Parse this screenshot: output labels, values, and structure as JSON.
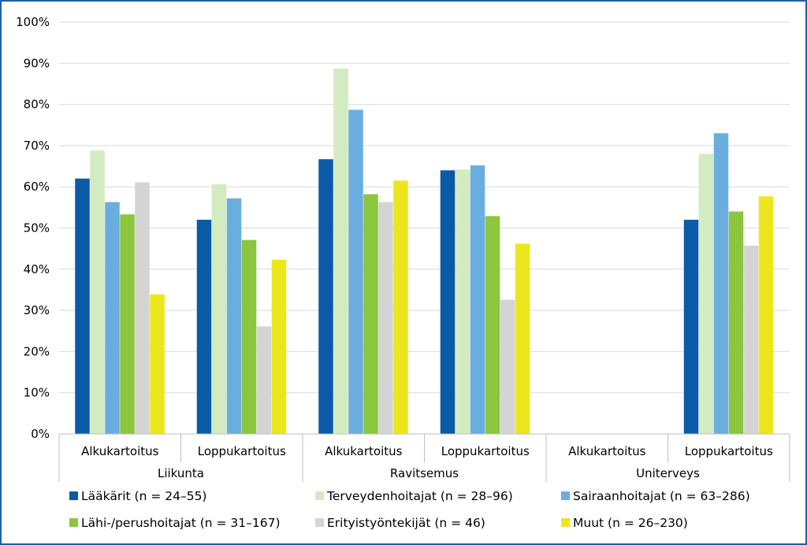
{
  "chart_data": {
    "type": "bar",
    "groups": [
      {
        "label": "Liikunta",
        "categories": [
          "Alkukartoitus",
          "Loppukartoitus"
        ]
      },
      {
        "label": "Ravitsemus",
        "categories": [
          "Alkukartoitus",
          "Loppukartoitus"
        ]
      },
      {
        "label": "Uniterveys",
        "categories": [
          "Alkukartoitus",
          "Loppukartoitus"
        ]
      }
    ],
    "series": [
      {
        "name": "Lääkärit (n = 24–55)",
        "color": "#0b5aa7",
        "values": [
          62,
          52,
          66.7,
          64,
          null,
          52
        ]
      },
      {
        "name": "Terveydenhoitajat (n = 28–96)",
        "color": "#d3ebc0",
        "values": [
          68.8,
          60.6,
          88.7,
          64.2,
          null,
          68
        ]
      },
      {
        "name": "Sairaanhoitajat (n = 63–286)",
        "color": "#6aaee0",
        "values": [
          56.3,
          57.2,
          78.7,
          65.2,
          null,
          73
        ]
      },
      {
        "name": "Lähi-/perushoitajat (n = 31–167)",
        "color": "#8cc53e",
        "values": [
          53.3,
          47.1,
          58.2,
          52.9,
          null,
          54
        ]
      },
      {
        "name": "Erityistyöntekijät (n = 46)",
        "color": "#d4d4d4",
        "values": [
          61.1,
          26.1,
          56.3,
          32.6,
          null,
          45.7
        ]
      },
      {
        "name": "Muut (n = 26–230)",
        "color": "#ece61d",
        "values": [
          33.9,
          42.3,
          61.5,
          46.2,
          null,
          57.7
        ]
      }
    ],
    "y_ticks": [
      "0%",
      "10%",
      "20%",
      "30%",
      "40%",
      "50%",
      "60%",
      "70%",
      "80%",
      "90%",
      "100%"
    ],
    "ylim": [
      0,
      100
    ],
    "grid": true,
    "legend_position": "bottom"
  }
}
